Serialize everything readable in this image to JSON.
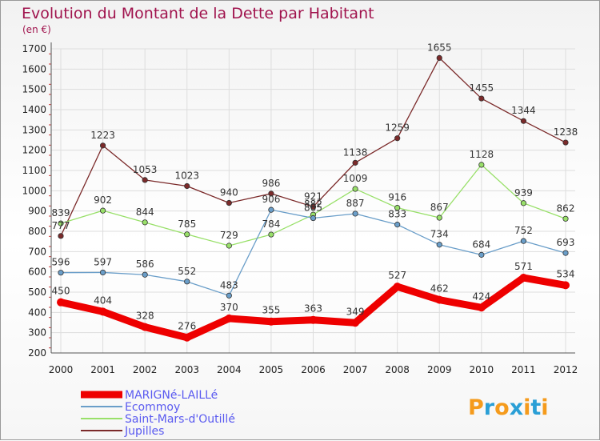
{
  "title": "Evolution du Montant de la Dette par Habitant",
  "subtitle": "(en €)",
  "brand": {
    "text": "Proxiti",
    "letters": [
      "P",
      "r",
      "o",
      "x",
      "i",
      "t",
      "i"
    ],
    "colors": [
      "#f59b1c",
      "#2a9fd6",
      "#f59b1c",
      "#2a9fd6",
      "#f59b1c",
      "#2a9fd6",
      "#f59b1c"
    ]
  },
  "chart_data": {
    "type": "line",
    "title": "Evolution du Montant de la Dette par Habitant",
    "subtitle": "(en €)",
    "x": [
      "2000",
      "2001",
      "2002",
      "2003",
      "2004",
      "2005",
      "2006",
      "2007",
      "2008",
      "2009",
      "2010",
      "2011",
      "2012"
    ],
    "ylim": [
      200,
      1700
    ],
    "yticks": [
      200,
      300,
      400,
      500,
      600,
      700,
      800,
      900,
      1000,
      1100,
      1200,
      1300,
      1400,
      1500,
      1600,
      1700
    ],
    "grid": true,
    "legend_position": "bottom-left",
    "series": [
      {
        "name": "MARIGNé-LAILLé",
        "color": "#ee0000",
        "values": [
          450,
          404,
          328,
          276,
          370,
          355,
          363,
          349,
          527,
          462,
          424,
          571,
          534
        ]
      },
      {
        "name": "Ecommoy",
        "color": "#6a9ec9",
        "values": [
          596,
          597,
          586,
          552,
          483,
          906,
          865,
          887,
          833,
          734,
          684,
          752,
          693
        ]
      },
      {
        "name": "Saint-Mars-d'Outillé",
        "color": "#99e06a",
        "values": [
          839,
          902,
          844,
          785,
          729,
          784,
          882,
          1009,
          916,
          867,
          1128,
          939,
          862
        ]
      },
      {
        "name": "Jupilles",
        "color": "#7b2a2a",
        "values": [
          777,
          1223,
          1053,
          1023,
          940,
          986,
          921,
          1138,
          1259,
          1655,
          1455,
          1344,
          1238
        ]
      }
    ]
  }
}
